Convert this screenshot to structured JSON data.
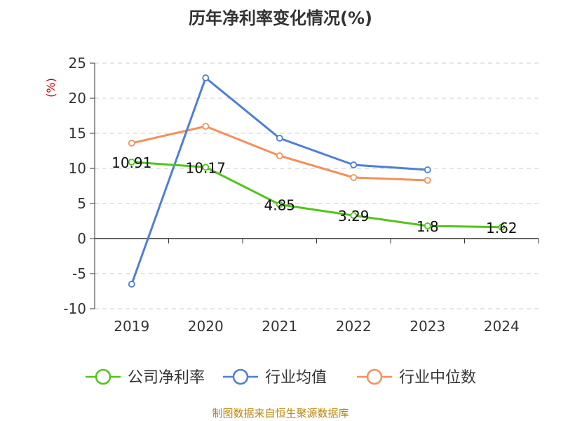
{
  "chart_data": {
    "type": "line",
    "title": "历年净利率变化情况(%)",
    "ylabel": "(%)",
    "categories": [
      "2019",
      "2020",
      "2021",
      "2022",
      "2023",
      "2024"
    ],
    "ylim": [
      -10,
      25
    ],
    "yticks": [
      25,
      20,
      15,
      10,
      5,
      0,
      -5,
      -10
    ],
    "grid": true,
    "legend_position": "bottom",
    "series": [
      {
        "name": "公司净利率",
        "color": "#52c41a",
        "values": [
          10.91,
          10.17,
          4.85,
          3.29,
          1.8,
          1.62
        ],
        "labels": [
          "10.91",
          "10.17",
          "4.85",
          "3.29",
          "1.8",
          "1.62"
        ]
      },
      {
        "name": "行业均值",
        "color": "#4d7fd8",
        "values": [
          -6.5,
          22.9,
          14.3,
          10.5,
          9.8,
          null
        ]
      },
      {
        "name": "行业中位数",
        "color": "#f5905a",
        "values": [
          13.6,
          16.0,
          11.8,
          8.7,
          8.3,
          null
        ]
      }
    ]
  },
  "source": "制图数据来自恒生聚源数据库"
}
